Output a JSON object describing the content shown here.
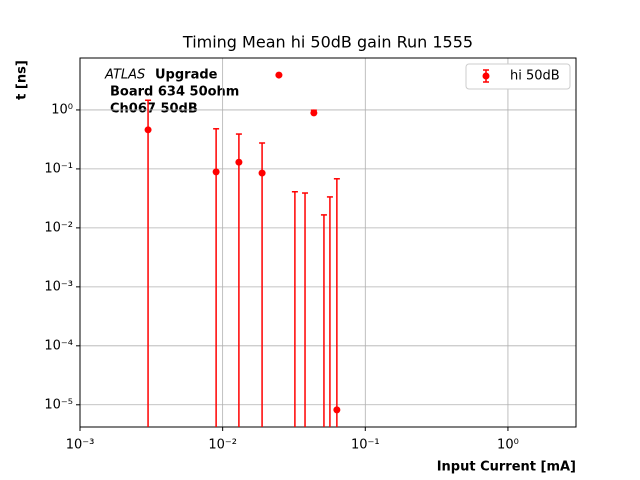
{
  "chart_data": {
    "type": "errorbar",
    "title": "Timing Mean hi 50dB gain Run 1555",
    "xlabel": "Input Current [mA]",
    "ylabel": "t [ns]",
    "annotations": [
      "ATLAS",
      "Upgrade",
      "Board 634 50ohm",
      "Ch067 50dB"
    ],
    "xscale": "log",
    "yscale": "log",
    "grid": true,
    "legend": "upper right",
    "xlim": [
      0.001,
      3
    ],
    "ylim": [
      4.2e-06,
      7.6
    ],
    "xticks": [
      {
        "value": 0.001,
        "label": "10⁻³"
      },
      {
        "value": 0.01,
        "label": "10⁻²"
      },
      {
        "value": 0.1,
        "label": "10⁻¹"
      },
      {
        "value": 1,
        "label": "10⁰"
      }
    ],
    "yticks": [
      {
        "value": 1e-05,
        "label": "10⁻⁵"
      },
      {
        "value": 0.0001,
        "label": "10⁻⁴"
      },
      {
        "value": 0.001,
        "label": "10⁻³"
      },
      {
        "value": 0.01,
        "label": "10⁻²"
      },
      {
        "value": 0.1,
        "label": "10⁻¹"
      },
      {
        "value": 1,
        "label": "10⁰"
      }
    ],
    "series": [
      {
        "name": "hi 50dB",
        "color": "#ff0000",
        "x": [
          0.003,
          0.009,
          0.013,
          0.0189,
          0.0248,
          0.0321,
          0.0378,
          0.0436,
          0.0513,
          0.0565,
          0.0632
        ],
        "values": [
          0.46,
          0.089,
          0.13,
          0.085,
          3.9,
          0,
          0,
          0.89,
          0,
          0,
          8.2e-06
        ],
        "errors": [
          1.0,
          0.39,
          0.26,
          0.19,
          0,
          0.041,
          0.039,
          0.1,
          0.0166,
          0.0335,
          0.068
        ]
      }
    ]
  }
}
